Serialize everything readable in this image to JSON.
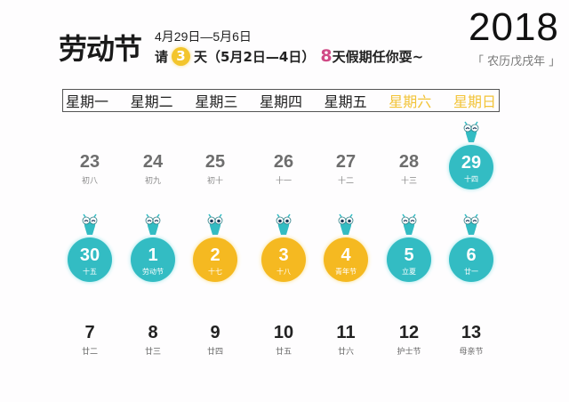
{
  "header": {
    "title": "劳动节",
    "date_range": "4月29日—5月6日",
    "note_prefix": "请",
    "leave_days": "3",
    "note_middle": "天（5月2日—4日）",
    "holiday_days": "8",
    "note_suffix": "天假期任你耍~",
    "year": "2018",
    "lunar_year": "「 农历戊戌年 」"
  },
  "colors": {
    "teal": "#33bcc3",
    "gold": "#f5b921",
    "pink": "#d04a86",
    "weekend_header": "#f2c439"
  },
  "weekdays": [
    "星期一",
    "星期二",
    "星期三",
    "星期四",
    "星期五",
    "星期六",
    "星期日"
  ],
  "weeks": [
    [
      {
        "day": "23",
        "lunar": "初八",
        "style": "plain-gray"
      },
      {
        "day": "24",
        "lunar": "初九",
        "style": "plain-gray"
      },
      {
        "day": "25",
        "lunar": "初十",
        "style": "plain-gray"
      },
      {
        "day": "26",
        "lunar": "十一",
        "style": "plain-gray"
      },
      {
        "day": "27",
        "lunar": "十二",
        "style": "plain-gray"
      },
      {
        "day": "28",
        "lunar": "十三",
        "style": "plain-gray"
      },
      {
        "day": "29",
        "lunar": "十四",
        "style": "teal"
      }
    ],
    [
      {
        "day": "30",
        "lunar": "十五",
        "style": "teal"
      },
      {
        "day": "1",
        "lunar": "劳动节",
        "style": "teal"
      },
      {
        "day": "2",
        "lunar": "十七",
        "style": "gold"
      },
      {
        "day": "3",
        "lunar": "十八",
        "style": "gold"
      },
      {
        "day": "4",
        "lunar": "青年节",
        "style": "gold"
      },
      {
        "day": "5",
        "lunar": "立夏",
        "style": "teal"
      },
      {
        "day": "6",
        "lunar": "廿一",
        "style": "teal"
      }
    ],
    [
      {
        "day": "7",
        "lunar": "廿二",
        "style": "plain-dark"
      },
      {
        "day": "8",
        "lunar": "廿三",
        "style": "plain-dark"
      },
      {
        "day": "9",
        "lunar": "廿四",
        "style": "plain-dark"
      },
      {
        "day": "10",
        "lunar": "廿五",
        "style": "plain-dark"
      },
      {
        "day": "11",
        "lunar": "廿六",
        "style": "plain-dark"
      },
      {
        "day": "12",
        "lunar": "护士节",
        "style": "plain-dark"
      },
      {
        "day": "13",
        "lunar": "母亲节",
        "style": "plain-dark"
      }
    ]
  ]
}
